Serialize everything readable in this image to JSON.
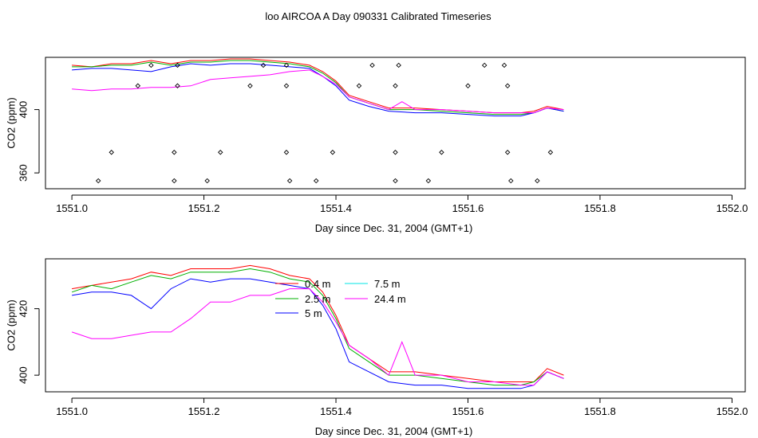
{
  "title": "loo AIRCOA A  Day 090331  Calibrated Timeseries",
  "colors": {
    "0.4 m": "#ff0000",
    "2.5 m": "#00b000",
    "5 m": "#0000ff",
    "7.5 m": "#00e5e5",
    "24.4 m": "#ff00ff",
    "markers": "#000000"
  },
  "chart_data": [
    {
      "type": "line",
      "xlabel": "Day since Dec. 31, 2004 (GMT+1)",
      "ylabel": "CO2 (ppm)",
      "xlim": [
        1550.96,
        1552.02
      ],
      "ylim": [
        350,
        433
      ],
      "xticks": [
        "1551.0",
        "1551.2",
        "1551.4",
        "1551.6",
        "1551.8",
        "1552.0"
      ],
      "yticks": [
        "360",
        "400"
      ],
      "grid": false,
      "series": [
        {
          "name": "0.4 m",
          "x": [
            1551.0,
            1551.03,
            1551.06,
            1551.09,
            1551.12,
            1551.15,
            1551.18,
            1551.21,
            1551.24,
            1551.27,
            1551.3,
            1551.33,
            1551.36,
            1551.38,
            1551.4,
            1551.42,
            1551.45,
            1551.48,
            1551.52,
            1551.56,
            1551.6,
            1551.64,
            1551.68,
            1551.7,
            1551.72,
            1551.745
          ],
          "y": [
            428,
            427,
            429,
            429,
            431,
            429,
            431,
            431,
            432,
            432,
            431,
            430,
            428,
            424,
            418,
            409,
            405,
            401,
            401,
            400,
            399,
            398,
            398,
            399,
            402,
            400
          ]
        },
        {
          "name": "2.5 m",
          "x": [
            1551.0,
            1551.03,
            1551.06,
            1551.09,
            1551.12,
            1551.15,
            1551.18,
            1551.21,
            1551.24,
            1551.27,
            1551.3,
            1551.33,
            1551.36,
            1551.38,
            1551.4,
            1551.42,
            1551.45,
            1551.48,
            1551.52,
            1551.56,
            1551.6,
            1551.64,
            1551.68,
            1551.7,
            1551.72,
            1551.745
          ],
          "y": [
            427,
            427,
            428,
            428,
            430,
            428,
            430,
            430,
            431,
            431,
            430,
            429,
            427,
            423,
            417,
            408,
            404,
            400,
            400,
            399,
            398,
            397,
            397,
            398,
            401,
            399
          ]
        },
        {
          "name": "5 m",
          "x": [
            1551.0,
            1551.03,
            1551.06,
            1551.09,
            1551.12,
            1551.15,
            1551.18,
            1551.21,
            1551.24,
            1551.27,
            1551.3,
            1551.33,
            1551.36,
            1551.38,
            1551.4,
            1551.42,
            1551.45,
            1551.48,
            1551.52,
            1551.56,
            1551.6,
            1551.64,
            1551.68,
            1551.7,
            1551.72,
            1551.745
          ],
          "y": [
            425,
            426,
            426,
            425,
            424,
            427,
            429,
            428,
            429,
            429,
            428,
            427,
            426,
            421,
            415,
            406,
            402,
            399,
            398,
            398,
            397,
            396,
            396,
            398,
            401,
            399
          ]
        },
        {
          "name": "24.4 m",
          "x": [
            1551.0,
            1551.03,
            1551.06,
            1551.09,
            1551.12,
            1551.15,
            1551.18,
            1551.21,
            1551.24,
            1551.27,
            1551.3,
            1551.33,
            1551.36,
            1551.38,
            1551.4,
            1551.42,
            1551.45,
            1551.48,
            1551.5,
            1551.52,
            1551.56,
            1551.6,
            1551.64,
            1551.68,
            1551.7,
            1551.72,
            1551.745
          ],
          "y": [
            413,
            412,
            413,
            413,
            414,
            414,
            415,
            419,
            420,
            421,
            422,
            424,
            425,
            421,
            416,
            408,
            404,
            400,
            405,
            400,
            400,
            399,
            398,
            398,
            398,
            401,
            400
          ]
        }
      ],
      "markers": {
        "x": [
          1551.04,
          1551.06,
          1551.1,
          1551.12,
          1551.155,
          1551.155,
          1551.16,
          1551.16,
          1551.205,
          1551.225,
          1551.27,
          1551.29,
          1551.325,
          1551.325,
          1551.325,
          1551.33,
          1551.37,
          1551.395,
          1551.435,
          1551.455,
          1551.49,
          1551.49,
          1551.49,
          1551.495,
          1551.54,
          1551.56,
          1551.6,
          1551.625,
          1551.655,
          1551.66,
          1551.66,
          1551.665,
          1551.705,
          1551.725
        ],
        "y": [
          355,
          373,
          415,
          428,
          355,
          373,
          415,
          428,
          355,
          373,
          415,
          428,
          373,
          415,
          428,
          355,
          355,
          373,
          415,
          428,
          355,
          373,
          415,
          428,
          355,
          373,
          415,
          428,
          428,
          415,
          373,
          355,
          355,
          373
        ]
      }
    },
    {
      "type": "line",
      "xlabel": "Day since Dec. 31, 2004 (GMT+1)",
      "ylabel": "CO2 (ppm)",
      "xlim": [
        1550.96,
        1552.02
      ],
      "ylim": [
        395,
        435
      ],
      "xticks": [
        "1551.0",
        "1551.2",
        "1551.4",
        "1551.6",
        "1551.8",
        "1552.0"
      ],
      "yticks": [
        "400",
        "420"
      ],
      "grid": false,
      "legend": {
        "placement": "top-center",
        "entries": [
          "0.4 m",
          "7.5 m",
          "2.5 m",
          "24.4 m",
          "5 m"
        ]
      },
      "series": [
        {
          "name": "0.4 m",
          "x": [
            1551.0,
            1551.03,
            1551.06,
            1551.09,
            1551.12,
            1551.15,
            1551.18,
            1551.21,
            1551.24,
            1551.27,
            1551.3,
            1551.33,
            1551.36,
            1551.38,
            1551.4,
            1551.42,
            1551.45,
            1551.48,
            1551.52,
            1551.56,
            1551.6,
            1551.64,
            1551.68,
            1551.7,
            1551.72,
            1551.745
          ],
          "y": [
            426,
            427,
            428,
            429,
            431,
            430,
            432,
            432,
            432,
            433,
            432,
            430,
            429,
            425,
            418,
            409,
            405,
            401,
            401,
            400,
            399,
            398,
            398,
            398,
            402,
            400
          ]
        },
        {
          "name": "2.5 m",
          "x": [
            1551.0,
            1551.03,
            1551.06,
            1551.09,
            1551.12,
            1551.15,
            1551.18,
            1551.21,
            1551.24,
            1551.27,
            1551.3,
            1551.33,
            1551.36,
            1551.38,
            1551.4,
            1551.42,
            1551.45,
            1551.48,
            1551.52,
            1551.56,
            1551.6,
            1551.64,
            1551.68,
            1551.7,
            1551.72,
            1551.745
          ],
          "y": [
            425,
            427,
            426,
            428,
            430,
            429,
            431,
            431,
            431,
            432,
            431,
            429,
            428,
            424,
            417,
            408,
            404,
            400,
            400,
            399,
            398,
            397,
            397,
            398,
            401,
            399
          ]
        },
        {
          "name": "5 m",
          "x": [
            1551.0,
            1551.03,
            1551.06,
            1551.09,
            1551.12,
            1551.15,
            1551.18,
            1551.21,
            1551.24,
            1551.27,
            1551.3,
            1551.33,
            1551.36,
            1551.38,
            1551.4,
            1551.42,
            1551.45,
            1551.48,
            1551.52,
            1551.56,
            1551.6,
            1551.64,
            1551.68,
            1551.7,
            1551.72,
            1551.745
          ],
          "y": [
            424,
            425,
            425,
            424,
            420,
            426,
            429,
            428,
            429,
            429,
            428,
            427,
            426,
            421,
            414,
            404,
            401,
            398,
            397,
            397,
            396,
            396,
            396,
            397,
            401,
            399
          ]
        },
        {
          "name": "24.4 m",
          "x": [
            1551.0,
            1551.03,
            1551.06,
            1551.09,
            1551.12,
            1551.15,
            1551.18,
            1551.21,
            1551.24,
            1551.27,
            1551.3,
            1551.33,
            1551.36,
            1551.38,
            1551.4,
            1551.42,
            1551.45,
            1551.48,
            1551.5,
            1551.52,
            1551.56,
            1551.6,
            1551.64,
            1551.68,
            1551.7,
            1551.72,
            1551.745
          ],
          "y": [
            413,
            411,
            411,
            412,
            413,
            413,
            417,
            422,
            422,
            424,
            424,
            426,
            426,
            422,
            416,
            409,
            405,
            400,
            410,
            400,
            400,
            398,
            398,
            397,
            397,
            401,
            399
          ]
        }
      ]
    }
  ]
}
